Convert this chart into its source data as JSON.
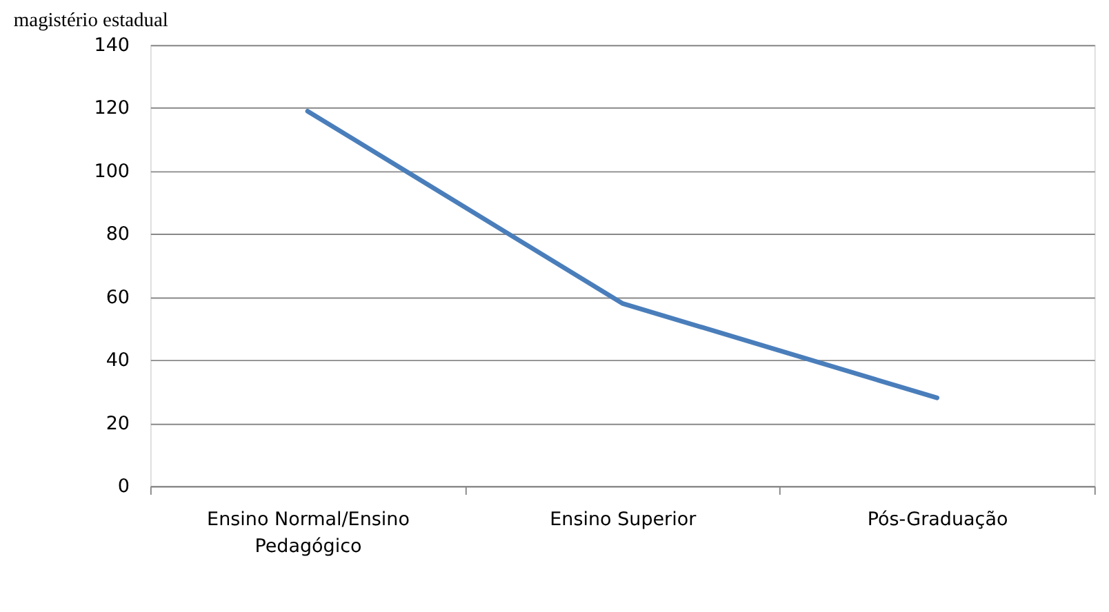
{
  "chart_data": {
    "type": "line",
    "title": "magistério estadual",
    "categories": [
      "Ensino Normal/Ensino Pedagógico",
      "Ensino Superior",
      "Pós-Graduação"
    ],
    "series": [
      {
        "color": "#4a7ebb",
        "values": [
          119,
          58,
          28
        ]
      }
    ],
    "ylim": [
      0,
      140
    ],
    "yticks": [
      0,
      20,
      40,
      60,
      80,
      100,
      120,
      140
    ],
    "grid": "y",
    "marker": "none",
    "line_style": "solid"
  }
}
